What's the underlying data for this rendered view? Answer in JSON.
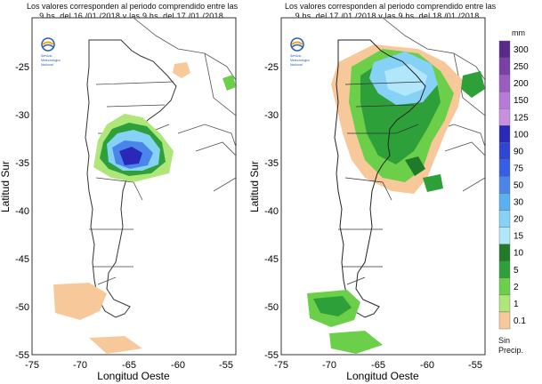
{
  "panels": [
    {
      "title_line1": "Los valores corresponden al periodo comprendido entre las",
      "title_line2": "9 hs. del 16 /01 /2018   y las 9 hs. del 17 /01 /2018",
      "logo_text": [
        "Servicio",
        "Meteorológico",
        "Nacional"
      ],
      "x_label": "Longitud Oeste",
      "y_label": "Latitud Sur"
    },
    {
      "title_line1": "Los valores corresponden al periodo comprendido entre las",
      "title_line2": "9 hs. del 17 /01 /2018   y las 9 hs. del 18 /01 /2018",
      "logo_text": [
        "Servicio",
        "Meteorológico",
        "Nacional"
      ],
      "x_label": "Longitud Oeste",
      "y_label": "Latitud Sur"
    }
  ],
  "axes": {
    "x_ticks": [
      "-75",
      "-70",
      "-65",
      "-60",
      "-55"
    ],
    "y_ticks": [
      "-25",
      "-30",
      "-35",
      "-40",
      "-45",
      "-50",
      "-55"
    ]
  },
  "legend": {
    "unit": "mm",
    "levels": [
      {
        "label": "300",
        "color": "#5a2a8a"
      },
      {
        "label": "250",
        "color": "#7a3fa8"
      },
      {
        "label": "200",
        "color": "#9a5cc2"
      },
      {
        "label": "150",
        "color": "#b77ad6"
      },
      {
        "label": "125",
        "color": "#c98fe0"
      },
      {
        "label": "100",
        "color": "#2a28b8"
      },
      {
        "label": "90",
        "color": "#2f45d4"
      },
      {
        "label": "75",
        "color": "#3560e6"
      },
      {
        "label": "50",
        "color": "#4a86ea"
      },
      {
        "label": "30",
        "color": "#5ab0f0"
      },
      {
        "label": "20",
        "color": "#86d2f6"
      },
      {
        "label": "15",
        "color": "#b2e6fa"
      },
      {
        "label": "10",
        "color": "#1f7a2a"
      },
      {
        "label": "5",
        "color": "#2ea03a"
      },
      {
        "label": "2",
        "color": "#6ccf4a"
      },
      {
        "label": "1",
        "color": "#aee67a"
      },
      {
        "label": "0.1",
        "color": "#f7c99a"
      }
    ],
    "no_precip_line1": "Sin",
    "no_precip_line2": "Precip."
  }
}
